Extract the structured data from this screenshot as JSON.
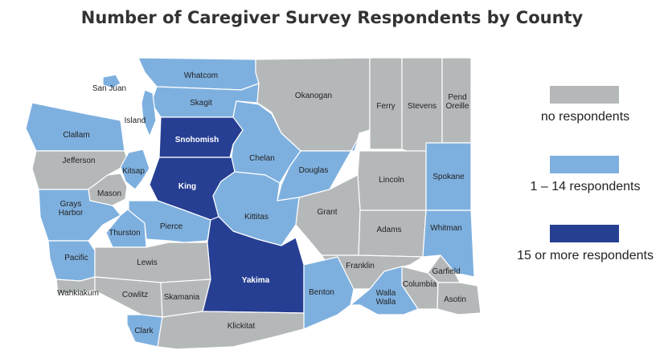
{
  "title": "Number of Caregiver Survey Respondents by County",
  "colors": {
    "none": "#b5b8b9",
    "low": "#7eb0df",
    "high": "#263f93"
  },
  "legend": [
    {
      "key": "none",
      "label": "no respondents"
    },
    {
      "key": "low",
      "label": "1 – 14 respondents"
    },
    {
      "key": "high",
      "label": "15 or more respondents"
    }
  ],
  "counties": [
    {
      "name": "Whatcom",
      "category": "low"
    },
    {
      "name": "San Juan",
      "category": "low"
    },
    {
      "name": "Skagit",
      "category": "low"
    },
    {
      "name": "Island",
      "category": "low"
    },
    {
      "name": "Okanogan",
      "category": "none"
    },
    {
      "name": "Ferry",
      "category": "none"
    },
    {
      "name": "Stevens",
      "category": "none"
    },
    {
      "name": "Pend Oreille",
      "category": "none"
    },
    {
      "name": "Clallam",
      "category": "low"
    },
    {
      "name": "Snohomish",
      "category": "high"
    },
    {
      "name": "Chelan",
      "category": "low"
    },
    {
      "name": "Jefferson",
      "category": "none"
    },
    {
      "name": "Douglas",
      "category": "low"
    },
    {
      "name": "Lincoln",
      "category": "none"
    },
    {
      "name": "Spokane",
      "category": "low"
    },
    {
      "name": "Kitsap",
      "category": "low"
    },
    {
      "name": "Mason",
      "category": "none"
    },
    {
      "name": "King",
      "category": "high"
    },
    {
      "name": "Grays Harbor",
      "category": "low"
    },
    {
      "name": "Grant",
      "category": "none"
    },
    {
      "name": "Kittitas",
      "category": "low"
    },
    {
      "name": "Adams",
      "category": "none"
    },
    {
      "name": "Whitman",
      "category": "low"
    },
    {
      "name": "Thurston",
      "category": "low"
    },
    {
      "name": "Pierce",
      "category": "low"
    },
    {
      "name": "Pacific",
      "category": "low"
    },
    {
      "name": "Lewis",
      "category": "none"
    },
    {
      "name": "Franklin",
      "category": "none"
    },
    {
      "name": "Garfield",
      "category": "none"
    },
    {
      "name": "Yakima",
      "category": "high"
    },
    {
      "name": "Columbia",
      "category": "none"
    },
    {
      "name": "Wahkiakum",
      "category": "none"
    },
    {
      "name": "Cowlitz",
      "category": "none"
    },
    {
      "name": "Skamania",
      "category": "none"
    },
    {
      "name": "Benton",
      "category": "low"
    },
    {
      "name": "Walla Walla",
      "category": "low"
    },
    {
      "name": "Asotin",
      "category": "none"
    },
    {
      "name": "Clark",
      "category": "low"
    },
    {
      "name": "Klickitat",
      "category": "none"
    }
  ]
}
